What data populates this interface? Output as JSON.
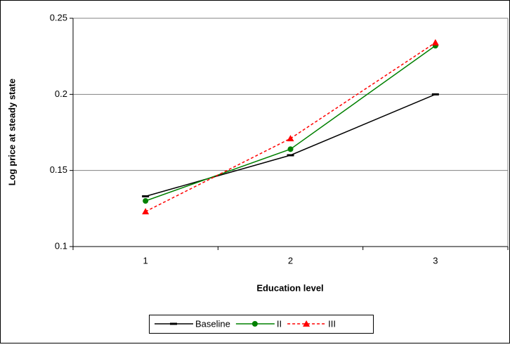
{
  "chart_data": {
    "type": "line",
    "x_label": "Education level",
    "y_label": "Log price at steady state",
    "categories": [
      "1",
      "2",
      "3"
    ],
    "series": [
      {
        "name": "Baseline",
        "color": "#000000",
        "marker": "dash",
        "dashed": false,
        "values": [
          0.133,
          0.16,
          0.2
        ]
      },
      {
        "name": "II",
        "color": "#008000",
        "marker": "circle",
        "dashed": false,
        "values": [
          0.13,
          0.164,
          0.232
        ]
      },
      {
        "name": "III",
        "color": "#ff0000",
        "marker": "triangle",
        "dashed": true,
        "values": [
          0.123,
          0.171,
          0.234
        ]
      }
    ],
    "ylim": [
      0.1,
      0.25
    ],
    "yticks": [
      0.1,
      0.15,
      0.2,
      0.25
    ],
    "grid": true,
    "legend": "bottom"
  }
}
